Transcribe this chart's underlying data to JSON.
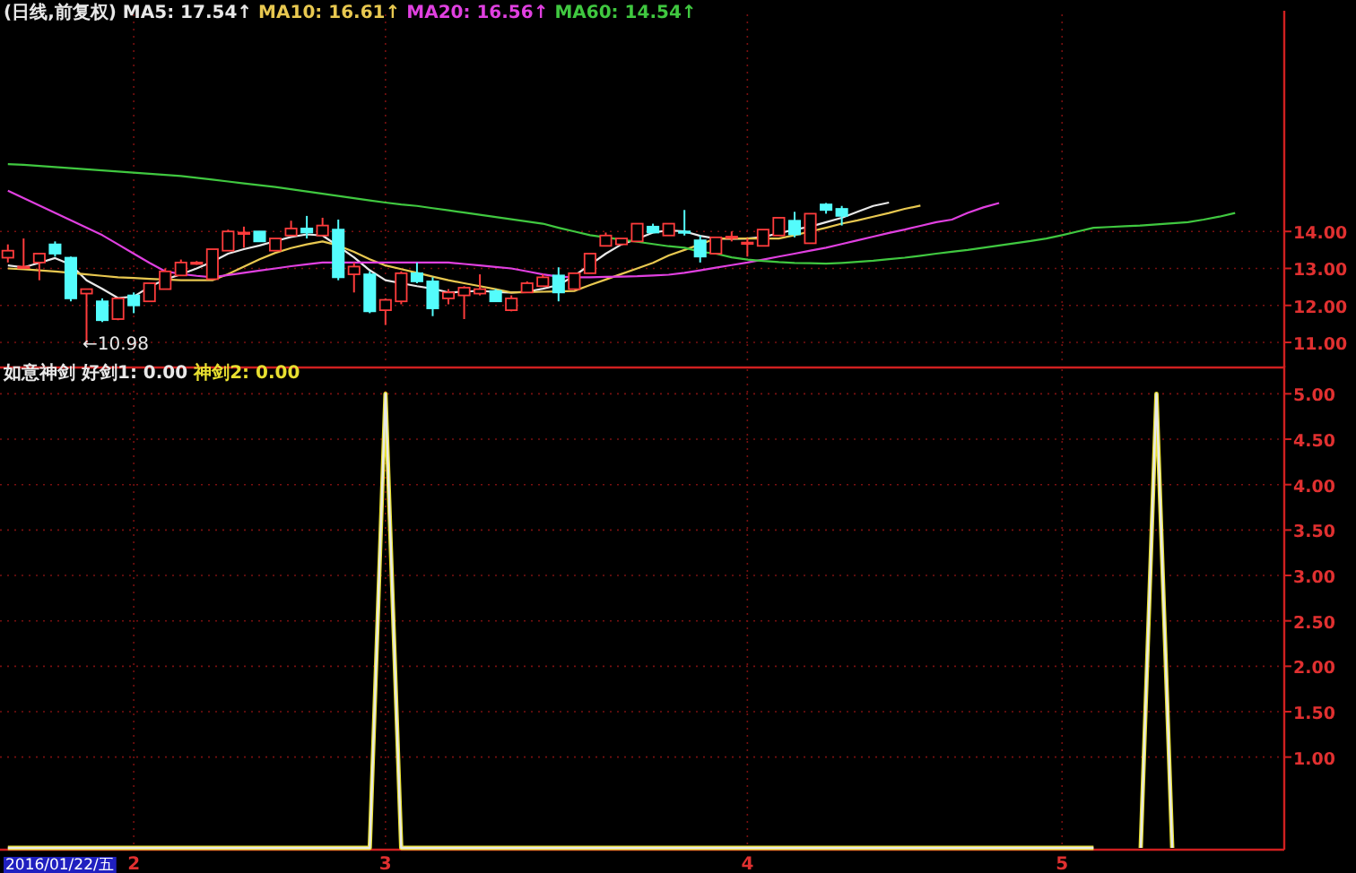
{
  "chart_data": [
    {
      "type": "candlestick",
      "title": "(日线,前复权)",
      "legend": "top left",
      "grid": true,
      "tick_labels": "y",
      "categories": [
        null,
        null,
        null,
        null,
        null,
        null,
        null,
        null,
        "2",
        null,
        null,
        null,
        null,
        null,
        null,
        null,
        null,
        null,
        null,
        null,
        null,
        null,
        null,
        null,
        "3",
        null,
        null,
        null,
        null,
        null,
        null,
        null,
        null,
        null,
        null,
        null,
        null,
        null,
        null,
        null,
        null,
        null,
        null,
        null,
        null,
        null,
        null,
        "4",
        null,
        null,
        null,
        null,
        null,
        null,
        null,
        null,
        null,
        null,
        null,
        null,
        null,
        null,
        null,
        null,
        null,
        null,
        null,
        "5",
        null,
        null,
        null,
        null,
        null,
        null,
        null,
        null,
        null,
        null,
        null
      ],
      "ylim": [
        10.37,
        19.87
      ],
      "yticks": [
        {
          "value": 11,
          "label": "11.00"
        },
        {
          "value": 12,
          "label": "12.00"
        },
        {
          "value": 13,
          "label": "13.00"
        },
        {
          "value": 14,
          "label": "14.00"
        }
      ],
      "ohlc": [
        [
          13.29,
          13.65,
          13.16,
          13.48
        ],
        [
          13.03,
          13.81,
          13.0,
          13.05
        ],
        [
          13.16,
          13.4,
          12.68,
          13.4
        ],
        [
          13.65,
          13.73,
          13.32,
          13.4
        ],
        [
          13.29,
          13.32,
          12.11,
          12.19
        ],
        [
          12.32,
          12.44,
          10.98,
          12.44
        ],
        [
          12.11,
          12.19,
          11.55,
          11.6
        ],
        [
          11.63,
          12.19,
          11.6,
          12.19
        ],
        [
          12.27,
          12.35,
          11.79,
          12.0
        ],
        [
          12.11,
          12.6,
          12.11,
          12.6
        ],
        [
          12.44,
          13.0,
          12.44,
          12.92
        ],
        [
          12.81,
          13.24,
          12.81,
          13.16
        ],
        [
          13.14,
          13.2,
          13.1,
          13.16
        ],
        [
          12.71,
          13.52,
          12.71,
          13.52
        ],
        [
          13.48,
          14.05,
          13.48,
          14.0
        ],
        [
          13.95,
          14.13,
          13.56,
          13.97
        ],
        [
          14.0,
          14.0,
          13.73,
          13.73
        ],
        [
          13.48,
          13.81,
          13.48,
          13.81
        ],
        [
          13.89,
          14.29,
          13.89,
          14.08
        ],
        [
          14.08,
          14.42,
          13.81,
          13.97
        ],
        [
          13.89,
          14.37,
          13.89,
          14.16
        ],
        [
          14.05,
          14.32,
          12.68,
          12.76
        ],
        [
          12.84,
          13.16,
          12.35,
          13.05
        ],
        [
          12.84,
          12.92,
          11.79,
          11.84
        ],
        [
          11.87,
          12.19,
          11.47,
          12.15
        ],
        [
          12.11,
          12.92,
          12.03,
          12.87
        ],
        [
          12.87,
          13.16,
          12.6,
          12.65
        ],
        [
          12.65,
          12.76,
          11.71,
          11.92
        ],
        [
          12.19,
          12.44,
          12.03,
          12.35
        ],
        [
          12.27,
          12.52,
          11.63,
          12.48
        ],
        [
          12.32,
          12.84,
          12.27,
          12.44
        ],
        [
          12.39,
          12.44,
          12.11,
          12.11
        ],
        [
          11.87,
          12.27,
          11.84,
          12.19
        ],
        [
          12.35,
          12.65,
          12.35,
          12.6
        ],
        [
          12.52,
          12.84,
          12.52,
          12.76
        ],
        [
          12.81,
          13.03,
          12.11,
          12.35
        ],
        [
          12.44,
          12.87,
          12.44,
          12.87
        ],
        [
          12.87,
          13.4,
          12.87,
          13.4
        ],
        [
          13.61,
          13.97,
          13.61,
          13.89
        ],
        [
          13.65,
          13.81,
          13.65,
          13.81
        ],
        [
          13.73,
          14.21,
          13.73,
          14.21
        ],
        [
          14.13,
          14.21,
          13.97,
          13.97
        ],
        [
          13.89,
          14.21,
          13.89,
          14.21
        ],
        [
          14.0,
          14.58,
          13.89,
          13.97
        ],
        [
          13.76,
          13.89,
          13.16,
          13.32
        ],
        [
          13.4,
          13.84,
          13.4,
          13.84
        ],
        [
          13.84,
          14.0,
          13.73,
          13.86
        ],
        [
          13.68,
          13.81,
          13.32,
          13.7
        ],
        [
          13.61,
          14.05,
          13.61,
          14.05
        ],
        [
          13.89,
          14.37,
          13.89,
          14.37
        ],
        [
          14.29,
          14.53,
          13.84,
          13.92
        ],
        [
          13.68,
          14.48,
          13.68,
          14.48
        ],
        [
          14.73,
          14.77,
          14.48,
          14.58
        ],
        [
          14.61,
          14.69,
          14.16,
          14.42
        ],
        null,
        null,
        null,
        null,
        null,
        null,
        null,
        null,
        null,
        null,
        null,
        null,
        null,
        null,
        null,
        null,
        null,
        null,
        null,
        null,
        null,
        null,
        null,
        null,
        null
      ],
      "colors": [
        "#ff3c3c",
        "#ff3c3c",
        "#ff3c3c",
        "#54fcfc",
        "#54fcfc",
        "#ff3c3c",
        "#54fcfc",
        "#ff3c3c",
        "#54fcfc",
        "#ff3c3c",
        "#ff3c3c",
        "#ff3c3c",
        "#ff3c3c",
        "#ff3c3c",
        "#ff3c3c",
        "#ff3c3c",
        "#54fcfc",
        "#ff3c3c",
        "#ff3c3c",
        "#54fcfc",
        "#ff3c3c",
        "#54fcfc",
        "#ff3c3c",
        "#54fcfc",
        "#ff3c3c",
        "#ff3c3c",
        "#54fcfc",
        "#54fcfc",
        "#ff3c3c",
        "#ff3c3c",
        "#ff3c3c",
        "#54fcfc",
        "#ff3c3c",
        "#ff3c3c",
        "#ff3c3c",
        "#54fcfc",
        "#ff3c3c",
        "#ff3c3c",
        "#ff3c3c",
        "#ff3c3c",
        "#ff3c3c",
        "#54fcfc",
        "#ff3c3c",
        "#54fcfc",
        "#54fcfc",
        "#ff3c3c",
        "#ff3c3c",
        "#ff3c3c",
        "#ff3c3c",
        "#ff3c3c",
        "#54fcfc",
        "#ff3c3c",
        "#54fcfc",
        "#54fcfc",
        null,
        null,
        null,
        null,
        null,
        null,
        null,
        null,
        null,
        null,
        null,
        null,
        null,
        null,
        null,
        null,
        null,
        null,
        null,
        null,
        null,
        null,
        null,
        null,
        null
      ],
      "series": [
        {
          "name": "MA5: 17.54↑",
          "type": "line",
          "color": "#e8e8e8",
          "values": [
            13.08,
            13.03,
            13.15,
            13.28,
            13.1,
            12.68,
            12.45,
            12.2,
            12.24,
            12.5,
            12.7,
            12.84,
            13.0,
            13.18,
            13.4,
            13.52,
            13.62,
            13.74,
            13.85,
            13.92,
            13.89,
            13.6,
            13.3,
            12.95,
            12.68,
            12.6,
            12.52,
            12.45,
            12.35,
            12.37,
            12.4,
            12.36,
            12.35,
            12.37,
            12.45,
            12.55,
            12.8,
            13.1,
            13.4,
            13.65,
            13.8,
            13.97,
            14.03,
            14.0,
            13.88,
            13.81,
            13.8,
            13.81,
            13.85,
            13.95,
            14.05,
            14.13,
            14.25,
            14.37,
            14.53,
            14.69,
            14.78,
            null,
            null,
            null,
            null,
            null,
            null,
            null,
            null,
            null,
            null,
            null,
            null,
            null,
            null,
            null,
            null,
            null,
            null,
            null,
            null,
            null,
            null
          ]
        },
        {
          "name": "MA10: 16.61↑",
          "type": "line",
          "color": "#e8c850",
          "values": [
            13.0,
            12.98,
            12.95,
            12.92,
            12.88,
            12.84,
            12.8,
            12.76,
            12.74,
            12.72,
            12.7,
            12.68,
            12.68,
            12.68,
            12.85,
            13.05,
            13.25,
            13.42,
            13.55,
            13.65,
            13.73,
            13.62,
            13.45,
            13.25,
            13.08,
            12.98,
            12.88,
            12.78,
            12.68,
            12.6,
            12.52,
            12.44,
            12.35,
            12.36,
            12.37,
            12.38,
            12.39,
            12.55,
            12.7,
            12.85,
            13.0,
            13.15,
            13.35,
            13.5,
            13.65,
            13.81,
            13.81,
            13.81,
            13.81,
            13.81,
            13.9,
            14.0,
            14.1,
            14.21,
            14.3,
            14.4,
            14.5,
            14.61,
            14.7,
            null,
            null,
            null,
            null,
            null,
            null,
            null,
            null,
            null,
            null,
            null,
            null,
            null,
            null,
            null,
            null,
            null,
            null,
            null,
            null
          ]
        },
        {
          "name": "MA20: 16.56↑",
          "type": "line",
          "color": "#e040e0",
          "values": [
            15.1,
            14.9,
            14.7,
            14.5,
            14.3,
            14.1,
            13.9,
            13.65,
            13.4,
            13.15,
            12.92,
            12.85,
            12.8,
            12.76,
            12.82,
            12.88,
            12.94,
            13.0,
            13.06,
            13.11,
            13.16,
            13.16,
            13.16,
            13.16,
            13.16,
            13.16,
            13.16,
            13.16,
            13.16,
            13.12,
            13.08,
            13.04,
            13.0,
            12.92,
            12.84,
            12.78,
            12.76,
            12.76,
            12.77,
            12.78,
            12.79,
            12.81,
            12.83,
            12.88,
            12.95,
            13.02,
            13.09,
            13.16,
            13.24,
            13.32,
            13.4,
            13.48,
            13.56,
            13.66,
            13.76,
            13.86,
            13.96,
            14.05,
            14.15,
            14.25,
            14.32,
            14.5,
            14.65,
            14.77,
            null,
            null,
            null,
            null,
            null,
            null,
            null,
            null,
            null,
            null,
            null,
            null,
            null,
            null,
            null
          ]
        },
        {
          "name": "MA60: 14.54↑",
          "type": "line",
          "color": "#40c840",
          "values": [
            15.82,
            15.8,
            15.77,
            15.74,
            15.71,
            15.68,
            15.65,
            15.62,
            15.59,
            15.56,
            15.53,
            15.5,
            15.45,
            15.4,
            15.35,
            15.3,
            15.25,
            15.2,
            15.14,
            15.08,
            15.02,
            14.96,
            14.9,
            14.84,
            14.78,
            14.73,
            14.69,
            14.63,
            14.57,
            14.51,
            14.45,
            14.39,
            14.33,
            14.27,
            14.21,
            14.1,
            14.0,
            13.9,
            13.84,
            13.78,
            13.72,
            13.66,
            13.6,
            13.56,
            13.45,
            13.4,
            13.3,
            13.24,
            13.2,
            13.17,
            13.15,
            13.14,
            13.13,
            13.15,
            13.18,
            13.21,
            13.25,
            13.29,
            13.34,
            13.4,
            13.45,
            13.5,
            13.56,
            13.62,
            13.68,
            13.74,
            13.81,
            13.9,
            14.0,
            14.1,
            14.12,
            14.14,
            14.16,
            14.19,
            14.22,
            14.25,
            14.32,
            14.4,
            14.5
          ]
        }
      ],
      "annotations": [
        "←10.98"
      ]
    },
    {
      "type": "line",
      "title": "如意神剑",
      "legend": "top left",
      "grid": true,
      "annotations": [
        "2016/01/22/五"
      ],
      "categories": [
        null,
        null,
        null,
        null,
        null,
        null,
        null,
        null,
        "2",
        null,
        null,
        null,
        null,
        null,
        null,
        null,
        null,
        null,
        null,
        null,
        null,
        null,
        null,
        null,
        "3",
        null,
        null,
        null,
        null,
        null,
        null,
        null,
        null,
        null,
        null,
        null,
        null,
        null,
        null,
        null,
        null,
        null,
        null,
        null,
        null,
        null,
        null,
        "4",
        null,
        null,
        null,
        null,
        null,
        null,
        null,
        null,
        null,
        null,
        null,
        null,
        null,
        null,
        null,
        null,
        null,
        null,
        null,
        "5",
        null,
        null,
        null,
        null,
        null,
        null,
        null,
        null,
        null,
        null,
        null
      ],
      "ylim": [
        0,
        5.27
      ],
      "yticks": [
        {
          "value": 1,
          "label": "1.00"
        },
        {
          "value": 1.5,
          "label": "1.50"
        },
        {
          "value": 2,
          "label": "2.00"
        },
        {
          "value": 2.5,
          "label": "2.50"
        },
        {
          "value": 3,
          "label": "3.00"
        },
        {
          "value": 3.5,
          "label": "3.50"
        },
        {
          "value": 4,
          "label": "4.00"
        },
        {
          "value": 4.5,
          "label": "4.50"
        },
        {
          "value": 5,
          "label": "5.00"
        }
      ],
      "series": [
        {
          "name": "好剑1: 0.00",
          "color": "#e8e8e8",
          "values": [
            0,
            0,
            0,
            0,
            0,
            0,
            0,
            0,
            0,
            0,
            0,
            0,
            0,
            0,
            0,
            0,
            0,
            0,
            0,
            0,
            0,
            0,
            0,
            0,
            5,
            0,
            0,
            0,
            0,
            0,
            0,
            0,
            0,
            0,
            0,
            0,
            0,
            0,
            0,
            0,
            0,
            0,
            0,
            0,
            0,
            0,
            0,
            0,
            0,
            0,
            0,
            0,
            0,
            0,
            0,
            0,
            0,
            0,
            0,
            0,
            0,
            0,
            0,
            0,
            0,
            0,
            0,
            0,
            0,
            0,
            null,
            null,
            0,
            5,
            0,
            null,
            null,
            null,
            null
          ]
        },
        {
          "name": "神剑2: 0.00",
          "color": "#e8e030",
          "values": [
            0,
            0,
            0,
            0,
            0,
            0,
            0,
            0,
            0,
            0,
            0,
            0,
            0,
            0,
            0,
            0,
            0,
            0,
            0,
            0,
            0,
            0,
            0,
            0,
            5,
            0,
            0,
            0,
            0,
            0,
            0,
            0,
            0,
            0,
            0,
            0,
            0,
            0,
            0,
            0,
            0,
            0,
            0,
            0,
            0,
            0,
            0,
            0,
            0,
            0,
            0,
            0,
            0,
            0,
            0,
            0,
            0,
            0,
            0,
            0,
            0,
            0,
            0,
            0,
            0,
            0,
            0,
            0,
            0,
            0,
            null,
            null,
            0,
            5,
            0,
            null,
            null,
            null,
            null
          ]
        }
      ]
    }
  ]
}
